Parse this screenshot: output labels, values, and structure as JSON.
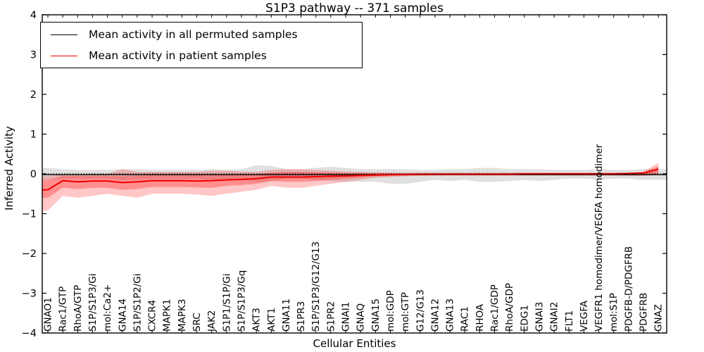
{
  "chart_data": {
    "type": "line",
    "title": "S1P3 pathway -- 371 samples",
    "xlabel": "Cellular Entities",
    "ylabel": "Inferred Activity",
    "ylim": [
      -4,
      4
    ],
    "ytick_labels": [
      "4",
      "3",
      "2",
      "1",
      "0",
      "−1",
      "−2",
      "−3",
      "−4"
    ],
    "grid": false,
    "legend_position": "upper left",
    "zero_line": {
      "style": "dotted",
      "color": "#000000",
      "y": 0
    },
    "colors": {
      "permuted_line": "#000000",
      "patient_line": "#ee0000",
      "permuted_band": "rgba(0,0,0,0.12)",
      "patient_band_outer": "rgba(255,0,0,0.22)",
      "patient_band_inner": "rgba(255,0,0,0.28)",
      "frame": "#000000"
    },
    "categories": [
      "GNAO1",
      "Rac1/GTP",
      "RhoA/GTP",
      "S1P/S1P3/Gi",
      "mol:Ca2+",
      "GNA14",
      "S1P/S1P2/Gi",
      "CXCR4",
      "MAPK1",
      "MAPK3",
      "SRC",
      "JAK2",
      "S1P1/S1P/Gi",
      "S1P/S1P3/Gq",
      "AKT3",
      "AKT1",
      "GNA11",
      "S1PR3",
      "S1P/S1P3/G12/G13",
      "S1PR2",
      "GNAI1",
      "GNAQ",
      "GNA15",
      "mol:GDP",
      "mol:GTP",
      "G12/G13",
      "GNA12",
      "GNA13",
      "RAC1",
      "RHOA",
      "Rac1/GDP",
      "RhoA/GDP",
      "EDG1",
      "GNAI3",
      "GNAI2",
      "FLT1",
      "VEGFA",
      "VEGFR1 homodimer/VEGFA homodimer",
      "mol:S1P",
      "PDGFB-D/PDGFRB",
      "PDGFRB",
      "GNAZ"
    ],
    "series": [
      {
        "name": "Mean activity in all permuted samples",
        "color": "#000000",
        "style": "solid",
        "values": [
          -0.02,
          -0.02,
          -0.02,
          -0.02,
          -0.02,
          -0.02,
          -0.02,
          -0.02,
          -0.02,
          -0.02,
          -0.02,
          -0.02,
          -0.02,
          -0.02,
          -0.02,
          -0.02,
          -0.02,
          -0.02,
          -0.02,
          -0.02,
          -0.02,
          -0.02,
          -0.02,
          -0.02,
          -0.02,
          -0.02,
          -0.02,
          -0.02,
          -0.02,
          -0.02,
          -0.02,
          -0.02,
          -0.02,
          -0.02,
          -0.02,
          -0.02,
          -0.02,
          -0.02,
          -0.02,
          -0.02,
          -0.02,
          -0.02
        ]
      },
      {
        "name": "Mean activity in patient samples",
        "color": "#ee0000",
        "style": "solid",
        "values": [
          -0.4,
          -0.17,
          -0.2,
          -0.18,
          -0.18,
          -0.22,
          -0.2,
          -0.17,
          -0.17,
          -0.17,
          -0.18,
          -0.17,
          -0.15,
          -0.14,
          -0.12,
          -0.08,
          -0.08,
          -0.08,
          -0.07,
          -0.06,
          -0.05,
          -0.04,
          -0.03,
          -0.02,
          -0.02,
          -0.01,
          -0.01,
          -0.01,
          -0.01,
          -0.01,
          -0.01,
          -0.01,
          0,
          0,
          0,
          0,
          0,
          0,
          0,
          0.01,
          0.02,
          0.12
        ]
      }
    ],
    "bands": [
      {
        "name": "permuted-range",
        "color": "rgba(0,0,0,0.12)",
        "lo": [
          -0.15,
          -0.12,
          -0.12,
          -0.12,
          -0.12,
          -0.15,
          -0.14,
          -0.12,
          -0.12,
          -0.12,
          -0.12,
          -0.15,
          -0.12,
          -0.15,
          -0.2,
          -0.18,
          -0.12,
          -0.12,
          -0.15,
          -0.18,
          -0.2,
          -0.2,
          -0.2,
          -0.25,
          -0.25,
          -0.2,
          -0.15,
          -0.18,
          -0.15,
          -0.2,
          -0.2,
          -0.18,
          -0.15,
          -0.18,
          -0.15,
          -0.12,
          -0.12,
          -0.15,
          -0.12,
          -0.12,
          -0.15,
          -0.15
        ],
        "hi": [
          0.15,
          0.12,
          0.1,
          0.1,
          0.1,
          0.12,
          0.12,
          0.1,
          0.1,
          0.1,
          0.1,
          0.12,
          0.1,
          0.12,
          0.22,
          0.2,
          0.12,
          0.12,
          0.15,
          0.18,
          0.15,
          0.12,
          0.12,
          0.12,
          0.12,
          0.1,
          0.1,
          0.12,
          0.12,
          0.15,
          0.15,
          0.12,
          0.12,
          0.12,
          0.1,
          0.1,
          0.1,
          0.12,
          0.1,
          0.1,
          0.12,
          0.12
        ]
      },
      {
        "name": "patient-range-outer",
        "color": "rgba(255,0,0,0.22)",
        "lo": [
          -0.92,
          -0.55,
          -0.6,
          -0.55,
          -0.5,
          -0.55,
          -0.6,
          -0.5,
          -0.5,
          -0.5,
          -0.52,
          -0.55,
          -0.5,
          -0.45,
          -0.4,
          -0.3,
          -0.35,
          -0.35,
          -0.3,
          -0.25,
          -0.2,
          -0.15,
          -0.1,
          -0.08,
          -0.06,
          -0.05,
          -0.04,
          -0.04,
          -0.04,
          -0.04,
          -0.04,
          -0.04,
          -0.04,
          -0.04,
          -0.04,
          -0.04,
          -0.04,
          -0.04,
          -0.04,
          -0.05,
          -0.05,
          -0.03
        ],
        "hi": [
          -0.05,
          -0.02,
          -0.02,
          0,
          0,
          0.12,
          0.05,
          0.05,
          0.05,
          0.05,
          0.05,
          0.08,
          0.08,
          0.06,
          0.05,
          0.1,
          0.12,
          0.12,
          0.1,
          0.08,
          0.06,
          0.05,
          0.04,
          0.03,
          0.03,
          0.03,
          0.03,
          0.03,
          0.03,
          0.03,
          0.03,
          0.03,
          0.03,
          0.03,
          0.03,
          0.03,
          0.03,
          0.03,
          0.03,
          0.03,
          0.06,
          0.28
        ]
      },
      {
        "name": "patient-range-inner",
        "color": "rgba(255,0,0,0.28)",
        "lo": [
          -0.6,
          -0.35,
          -0.38,
          -0.35,
          -0.35,
          -0.4,
          -0.38,
          -0.33,
          -0.33,
          -0.33,
          -0.34,
          -0.35,
          -0.3,
          -0.28,
          -0.25,
          -0.18,
          -0.2,
          -0.2,
          -0.18,
          -0.15,
          -0.12,
          -0.09,
          -0.06,
          -0.05,
          -0.04,
          -0.03,
          -0.03,
          -0.03,
          -0.03,
          -0.03,
          -0.03,
          -0.03,
          -0.03,
          -0.03,
          -0.03,
          -0.03,
          -0.03,
          -0.03,
          -0.03,
          -0.03,
          -0.03,
          -0.01
        ],
        "hi": [
          -0.15,
          -0.05,
          -0.05,
          -0.05,
          -0.05,
          -0.05,
          -0.04,
          -0.03,
          -0.03,
          -0.03,
          -0.03,
          -0.02,
          -0.02,
          -0.02,
          -0.01,
          0.03,
          0.05,
          0.05,
          0.04,
          0.03,
          0.02,
          0.02,
          0.02,
          0.02,
          0.02,
          0.02,
          0.02,
          0.02,
          0.02,
          0.02,
          0.02,
          0.02,
          0.02,
          0.02,
          0.02,
          0.02,
          0.02,
          0.02,
          0.02,
          0.02,
          0.04,
          0.2
        ]
      }
    ]
  }
}
